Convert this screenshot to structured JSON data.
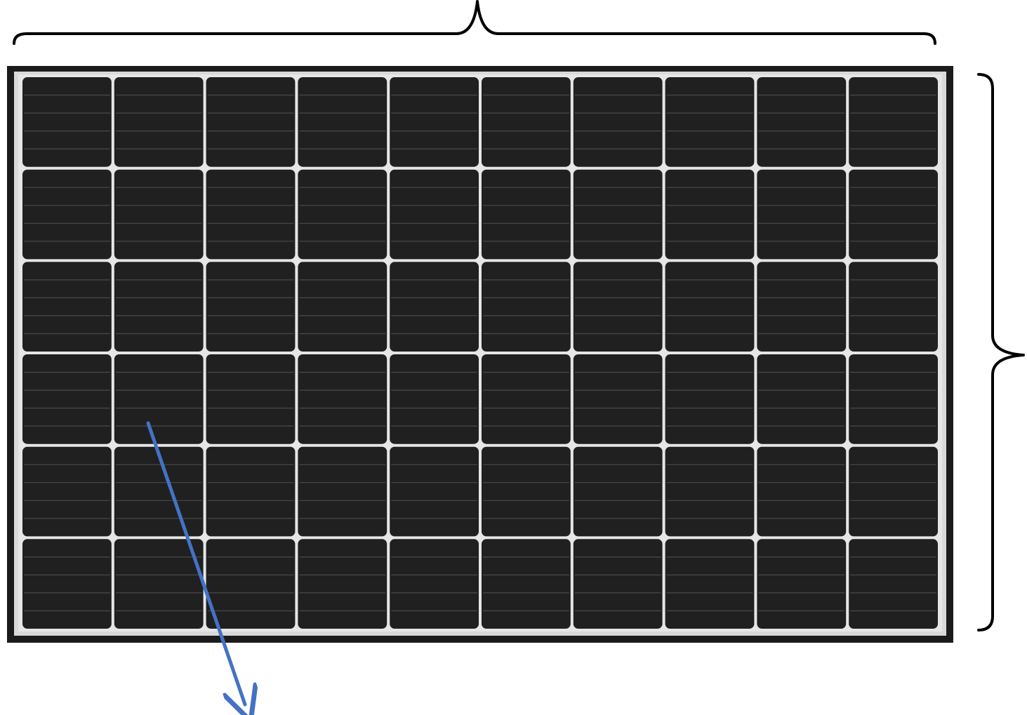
{
  "figure": {
    "panel_rows": 6,
    "panel_cols": 10,
    "busbars_per_cell": 4,
    "brace_top_icon": "curly-brace-horizontal",
    "brace_right_icon": "curly-brace-vertical",
    "arrow_icon": "arrow-down-right"
  },
  "colors": {
    "background": "#ffffff",
    "frame": "#1b1b1b",
    "frame_inner": "#d9d9d9",
    "grid_gap": "#e6e6e6",
    "cell": "#202020",
    "busbar": "#4a4a4a",
    "brace": "#000000",
    "arrow": "#4472c4"
  }
}
